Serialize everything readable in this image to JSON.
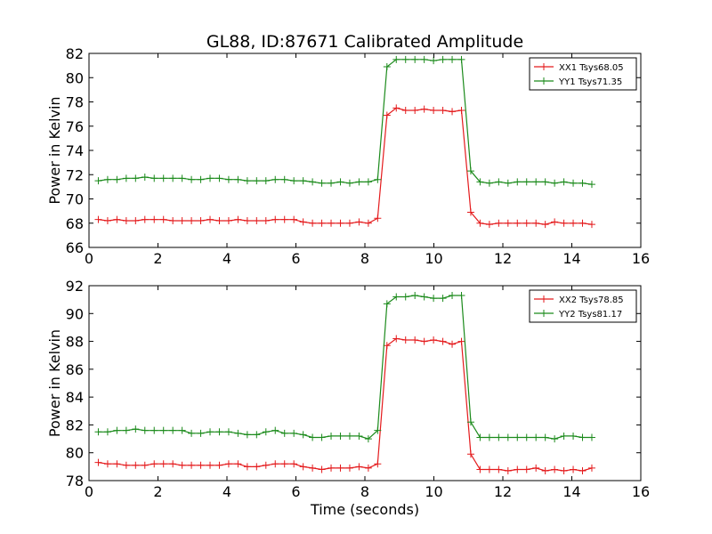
{
  "figure": {
    "title": "GL88, ID:87671 Calibrated Amplitude",
    "xlabel": "Time (seconds)"
  },
  "colors": {
    "red": "#e41a1c",
    "green": "#1b8a1b"
  },
  "chart_data": [
    {
      "type": "line",
      "title": "GL88, ID:87671 Calibrated Amplitude",
      "xlabel": "",
      "ylabel": "Power in Kelvin",
      "xlim": [
        0,
        16
      ],
      "ylim": [
        66,
        82
      ],
      "xticks": [
        0,
        2,
        4,
        6,
        8,
        10,
        12,
        14,
        16
      ],
      "yticks": [
        66,
        68,
        70,
        72,
        74,
        76,
        78,
        80,
        82
      ],
      "grid": false,
      "legend": "top-right",
      "x": [
        0.27,
        0.54,
        0.81,
        1.08,
        1.35,
        1.62,
        1.89,
        2.16,
        2.43,
        2.7,
        2.97,
        3.24,
        3.51,
        3.78,
        4.05,
        4.32,
        4.59,
        4.86,
        5.13,
        5.4,
        5.67,
        5.94,
        6.21,
        6.48,
        6.75,
        7.02,
        7.29,
        7.56,
        7.83,
        8.1,
        8.37,
        8.64,
        8.91,
        9.18,
        9.45,
        9.72,
        9.99,
        10.26,
        10.53,
        10.8,
        11.07,
        11.34,
        11.61,
        11.88,
        12.15,
        12.42,
        12.69,
        12.96,
        13.23,
        13.5,
        13.77,
        14.04,
        14.31,
        14.58
      ],
      "series": [
        {
          "name": "XX1 Tsys68.05",
          "color": "#e41a1c",
          "values": [
            68.3,
            68.2,
            68.3,
            68.2,
            68.2,
            68.3,
            68.3,
            68.3,
            68.2,
            68.2,
            68.2,
            68.2,
            68.3,
            68.2,
            68.2,
            68.3,
            68.2,
            68.2,
            68.2,
            68.3,
            68.3,
            68.3,
            68.1,
            68.0,
            68.0,
            68.0,
            68.0,
            68.0,
            68.1,
            68.0,
            68.4,
            76.9,
            77.5,
            77.3,
            77.3,
            77.4,
            77.3,
            77.3,
            77.2,
            77.3,
            68.9,
            68.0,
            67.9,
            68.0,
            68.0,
            68.0,
            68.0,
            68.0,
            67.9,
            68.1,
            68.0,
            68.0,
            68.0,
            67.9
          ]
        },
        {
          "name": "YY1 Tsys71.35",
          "color": "#1b8a1b",
          "values": [
            71.5,
            71.6,
            71.6,
            71.7,
            71.7,
            71.8,
            71.7,
            71.7,
            71.7,
            71.7,
            71.6,
            71.6,
            71.7,
            71.7,
            71.6,
            71.6,
            71.5,
            71.5,
            71.5,
            71.6,
            71.6,
            71.5,
            71.5,
            71.4,
            71.3,
            71.3,
            71.4,
            71.3,
            71.4,
            71.4,
            71.6,
            80.9,
            81.5,
            81.5,
            81.5,
            81.5,
            81.4,
            81.5,
            81.5,
            81.5,
            72.3,
            71.4,
            71.3,
            71.4,
            71.3,
            71.4,
            71.4,
            71.4,
            71.4,
            71.3,
            71.4,
            71.3,
            71.3,
            71.2
          ]
        }
      ]
    },
    {
      "type": "line",
      "title": "",
      "xlabel": "Time (seconds)",
      "ylabel": "Power in Kelvin",
      "xlim": [
        0,
        16
      ],
      "ylim": [
        78,
        92
      ],
      "xticks": [
        0,
        2,
        4,
        6,
        8,
        10,
        12,
        14,
        16
      ],
      "yticks": [
        78,
        80,
        82,
        84,
        86,
        88,
        90,
        92
      ],
      "grid": false,
      "legend": "top-right",
      "x": [
        0.27,
        0.54,
        0.81,
        1.08,
        1.35,
        1.62,
        1.89,
        2.16,
        2.43,
        2.7,
        2.97,
        3.24,
        3.51,
        3.78,
        4.05,
        4.32,
        4.59,
        4.86,
        5.13,
        5.4,
        5.67,
        5.94,
        6.21,
        6.48,
        6.75,
        7.02,
        7.29,
        7.56,
        7.83,
        8.1,
        8.37,
        8.64,
        8.91,
        9.18,
        9.45,
        9.72,
        9.99,
        10.26,
        10.53,
        10.8,
        11.07,
        11.34,
        11.61,
        11.88,
        12.15,
        12.42,
        12.69,
        12.96,
        13.23,
        13.5,
        13.77,
        14.04,
        14.31,
        14.58
      ],
      "series": [
        {
          "name": "XX2 Tsys78.85",
          "color": "#e41a1c",
          "values": [
            79.3,
            79.2,
            79.2,
            79.1,
            79.1,
            79.1,
            79.2,
            79.2,
            79.2,
            79.1,
            79.1,
            79.1,
            79.1,
            79.1,
            79.2,
            79.2,
            79.0,
            79.0,
            79.1,
            79.2,
            79.2,
            79.2,
            79.0,
            78.9,
            78.8,
            78.9,
            78.9,
            78.9,
            79.0,
            78.9,
            79.2,
            87.7,
            88.2,
            88.1,
            88.1,
            88.0,
            88.1,
            88.0,
            87.8,
            88.0,
            79.9,
            78.8,
            78.8,
            78.8,
            78.7,
            78.8,
            78.8,
            78.9,
            78.7,
            78.8,
            78.7,
            78.8,
            78.7,
            78.9
          ]
        },
        {
          "name": "YY2 Tsys81.17",
          "color": "#1b8a1b",
          "values": [
            81.5,
            81.5,
            81.6,
            81.6,
            81.7,
            81.6,
            81.6,
            81.6,
            81.6,
            81.6,
            81.4,
            81.4,
            81.5,
            81.5,
            81.5,
            81.4,
            81.3,
            81.3,
            81.5,
            81.6,
            81.4,
            81.4,
            81.3,
            81.1,
            81.1,
            81.2,
            81.2,
            81.2,
            81.2,
            81.0,
            81.6,
            90.7,
            91.2,
            91.2,
            91.3,
            91.2,
            91.1,
            91.1,
            91.3,
            91.3,
            82.2,
            81.1,
            81.1,
            81.1,
            81.1,
            81.1,
            81.1,
            81.1,
            81.1,
            81.0,
            81.2,
            81.2,
            81.1,
            81.1
          ]
        }
      ]
    }
  ]
}
